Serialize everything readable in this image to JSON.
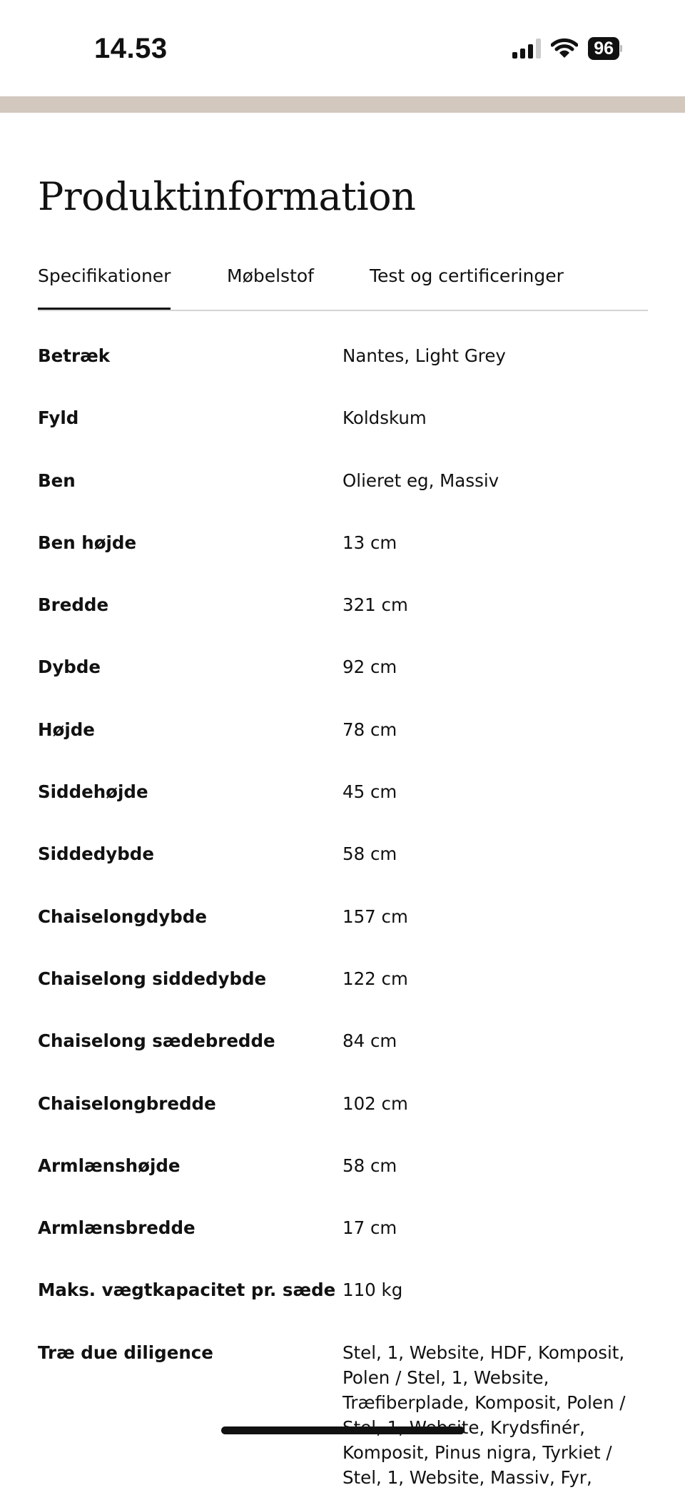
{
  "status_bar": {
    "time": "14.53",
    "battery": "96",
    "icons": [
      "signal-icon",
      "wifi-icon",
      "battery-icon"
    ]
  },
  "accent_band_color": "#d2c8be",
  "page_title": "Produktinformation",
  "tabs": [
    {
      "label": "Specifikationer",
      "active": true
    },
    {
      "label": "Møbelstof",
      "active": false
    },
    {
      "label": "Test og certificeringer",
      "active": false
    }
  ],
  "specs": [
    {
      "label": "Betræk",
      "value": "Nantes, Light Grey"
    },
    {
      "label": "Fyld",
      "value": "Koldskum"
    },
    {
      "label": "Ben",
      "value": "Olieret eg, Massiv"
    },
    {
      "label": "Ben højde",
      "value": "13 cm"
    },
    {
      "label": "Bredde",
      "value": "321 cm"
    },
    {
      "label": "Dybde",
      "value": "92 cm"
    },
    {
      "label": "Højde",
      "value": "78 cm"
    },
    {
      "label": "Siddehøjde",
      "value": "45 cm"
    },
    {
      "label": "Siddedybde",
      "value": "58 cm"
    },
    {
      "label": "Chaiselongdybde",
      "value": "157 cm"
    },
    {
      "label": "Chaiselong siddedybde",
      "value": "122 cm"
    },
    {
      "label": "Chaiselong sædebredde",
      "value": "84 cm"
    },
    {
      "label": "Chaiselongbredde",
      "value": "102 cm"
    },
    {
      "label": "Armlænshøjde",
      "value": "58 cm"
    },
    {
      "label": "Armlænsbredde",
      "value": "17 cm"
    },
    {
      "label": "Maks. vægtkapacitet pr. sæde",
      "value": "110 kg"
    },
    {
      "label": "Træ due diligence",
      "value": "Stel, 1, Website, HDF, Komposit, Polen / Stel, 1, Website, Træfiberplade, Komposit, Polen / Stel, 1, Website, Krydsfinér, Komposit, Pinus nigra, Tyrkiet / Stel, 1, Website, Massiv, Fyr,"
    }
  ]
}
